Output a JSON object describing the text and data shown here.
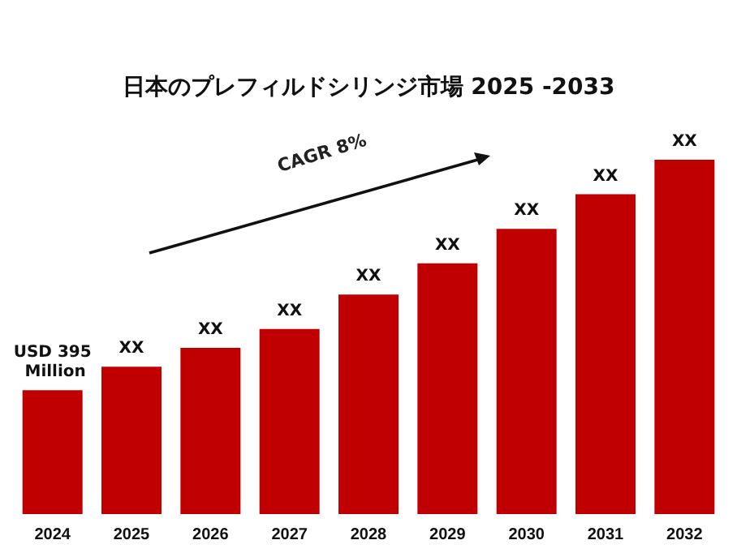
{
  "chart_data": {
    "type": "bar",
    "title": "日本のプレフィルドシリンジ市場 2025 -2033",
    "categories": [
      "2024",
      "2025",
      "2026",
      "2027",
      "2028",
      "2029",
      "2030",
      "2031",
      "2032"
    ],
    "values": [
      395,
      470,
      530,
      590,
      700,
      800,
      910,
      1020,
      1130
    ],
    "value_labels": [
      "USD 395 Million",
      "XX",
      "XX",
      "XX",
      "XX",
      "XX",
      "XX",
      "XX",
      "XX"
    ],
    "color": "#c00000",
    "annotations": [
      "CAGR 8%"
    ]
  }
}
